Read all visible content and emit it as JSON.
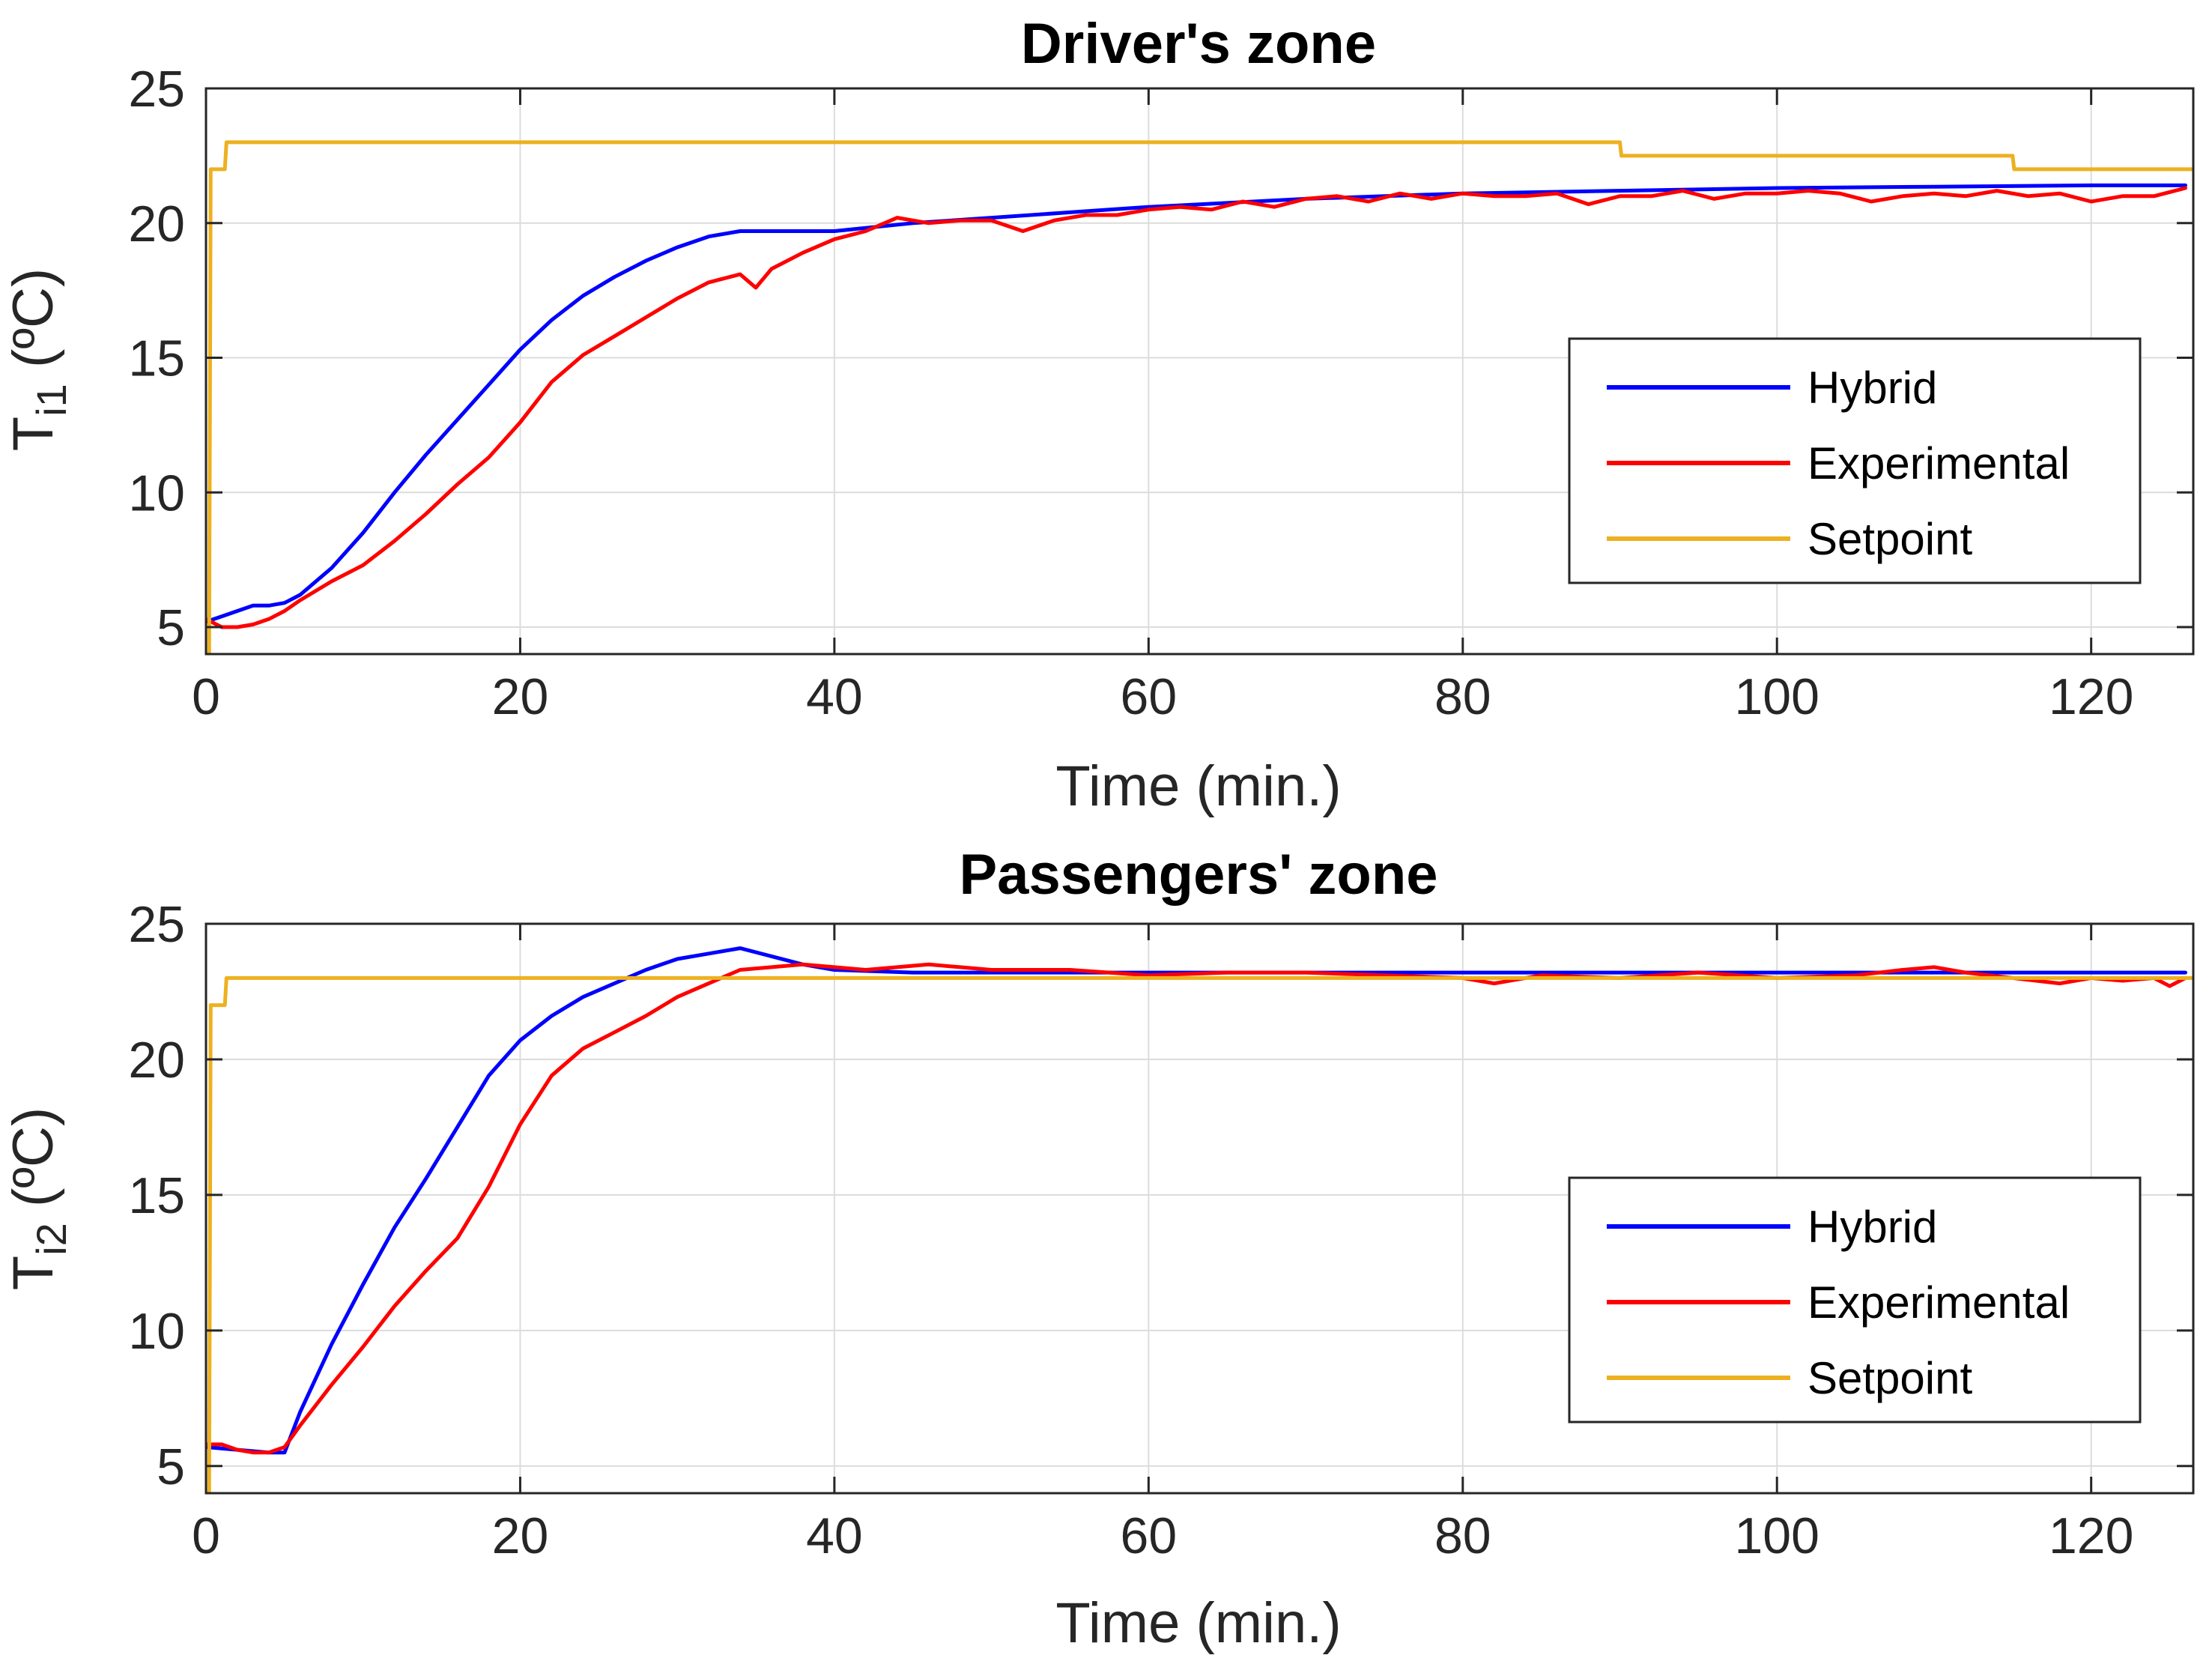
{
  "colors": {
    "hybrid": "#0000ff",
    "experimental": "#ff0000",
    "setpoint": "#edb120"
  },
  "chart_data": [
    {
      "type": "line",
      "title": "Driver's zone",
      "xlabel": "Time (min.)",
      "ylabel_main": "T",
      "ylabel_sub": "i1",
      "ylabel_unit": " (ºC)",
      "xlim": [
        0,
        126.5
      ],
      "ylim": [
        4,
        25
      ],
      "xticks": [
        0,
        20,
        40,
        60,
        80,
        100,
        120
      ],
      "yticks": [
        5,
        10,
        15,
        20,
        25
      ],
      "grid": true,
      "legend_position": "right",
      "series": [
        {
          "name": "Hybrid",
          "color_key": "hybrid",
          "x": [
            0,
            1,
            2,
            3,
            4,
            5,
            6,
            8,
            10,
            12,
            14,
            16,
            18,
            20,
            22,
            24,
            26,
            28,
            30,
            32,
            34,
            36,
            38,
            40,
            45,
            50,
            55,
            60,
            70,
            80,
            90,
            100,
            110,
            120,
            126
          ],
          "y": [
            5.2,
            5.4,
            5.6,
            5.8,
            5.8,
            5.9,
            6.2,
            7.2,
            8.5,
            10.0,
            11.4,
            12.7,
            14.0,
            15.3,
            16.4,
            17.3,
            18.0,
            18.6,
            19.1,
            19.5,
            19.7,
            19.7,
            19.7,
            19.7,
            20.0,
            20.2,
            20.4,
            20.6,
            20.9,
            21.1,
            21.2,
            21.3,
            21.35,
            21.4,
            21.4
          ]
        },
        {
          "name": "Experimental",
          "color_key": "experimental",
          "x": [
            0,
            1,
            2,
            3,
            4,
            5,
            6,
            8,
            10,
            12,
            14,
            16,
            18,
            20,
            22,
            24,
            26,
            28,
            30,
            32,
            34,
            35,
            36,
            38,
            40,
            42,
            44,
            46,
            48,
            50,
            52,
            54,
            56,
            58,
            60,
            62,
            64,
            66,
            68,
            70,
            72,
            74,
            76,
            78,
            80,
            82,
            84,
            86,
            88,
            90,
            92,
            94,
            96,
            98,
            100,
            102,
            104,
            106,
            108,
            110,
            112,
            114,
            116,
            118,
            120,
            122,
            124,
            126
          ],
          "y": [
            5.3,
            5.0,
            5.0,
            5.1,
            5.3,
            5.6,
            6.0,
            6.7,
            7.3,
            8.2,
            9.2,
            10.3,
            11.3,
            12.6,
            14.1,
            15.1,
            15.8,
            16.5,
            17.2,
            17.8,
            18.1,
            17.6,
            18.3,
            18.9,
            19.4,
            19.7,
            20.2,
            20.0,
            20.1,
            20.1,
            19.7,
            20.1,
            20.3,
            20.3,
            20.5,
            20.6,
            20.5,
            20.8,
            20.6,
            20.9,
            21.0,
            20.8,
            21.1,
            20.9,
            21.1,
            21.0,
            21.0,
            21.1,
            20.7,
            21.0,
            21.0,
            21.2,
            20.9,
            21.1,
            21.1,
            21.2,
            21.1,
            20.8,
            21.0,
            21.1,
            21.0,
            21.2,
            21.0,
            21.1,
            20.8,
            21.0,
            21.0,
            21.3
          ]
        },
        {
          "name": "Setpoint",
          "color_key": "setpoint",
          "x": [
            0,
            0.2,
            0.3,
            1.2,
            1.3,
            90,
            90.1,
            115,
            115.1,
            126.5
          ],
          "y": [
            4,
            4,
            22,
            22,
            23,
            23,
            22.5,
            22.5,
            22,
            22
          ]
        }
      ]
    },
    {
      "type": "line",
      "title": "Passengers' zone",
      "xlabel": "Time (min.)",
      "ylabel_main": "T",
      "ylabel_sub": "i2",
      "ylabel_unit": " (ºC)",
      "xlim": [
        0,
        126.5
      ],
      "ylim": [
        4,
        25
      ],
      "xticks": [
        0,
        20,
        40,
        60,
        80,
        100,
        120
      ],
      "yticks": [
        5,
        10,
        15,
        20,
        25
      ],
      "grid": true,
      "legend_position": "right",
      "series": [
        {
          "name": "Hybrid",
          "color_key": "hybrid",
          "x": [
            0,
            2,
            4,
            5,
            6,
            8,
            10,
            12,
            14,
            16,
            18,
            20,
            22,
            24,
            26,
            28,
            30,
            32,
            34,
            36,
            38,
            40,
            45,
            50,
            60,
            80,
            100,
            126
          ],
          "y": [
            5.7,
            5.6,
            5.5,
            5.5,
            7.0,
            9.5,
            11.7,
            13.8,
            15.6,
            17.5,
            19.4,
            20.7,
            21.6,
            22.3,
            22.8,
            23.3,
            23.7,
            23.9,
            24.1,
            23.8,
            23.5,
            23.3,
            23.2,
            23.2,
            23.2,
            23.2,
            23.2,
            23.2
          ]
        },
        {
          "name": "Experimental",
          "color_key": "experimental",
          "x": [
            0,
            1,
            2,
            3,
            4,
            5,
            6,
            8,
            10,
            12,
            14,
            16,
            18,
            20,
            22,
            24,
            26,
            28,
            30,
            32,
            34,
            36,
            38,
            40,
            42,
            44,
            46,
            48,
            50,
            55,
            60,
            65,
            70,
            75,
            80,
            82,
            85,
            90,
            95,
            100,
            105,
            108,
            110,
            112,
            115,
            118,
            120,
            122,
            124,
            125,
            126
          ],
          "y": [
            5.8,
            5.8,
            5.6,
            5.5,
            5.5,
            5.7,
            6.5,
            8.0,
            9.4,
            10.9,
            12.2,
            13.4,
            15.3,
            17.6,
            19.4,
            20.4,
            21.0,
            21.6,
            22.3,
            22.8,
            23.3,
            23.4,
            23.5,
            23.4,
            23.3,
            23.4,
            23.5,
            23.4,
            23.3,
            23.3,
            23.1,
            23.2,
            23.2,
            23.1,
            23.0,
            22.8,
            23.1,
            23.0,
            23.2,
            23.0,
            23.1,
            23.3,
            23.4,
            23.2,
            23.0,
            22.8,
            23.0,
            22.9,
            23.0,
            22.7,
            23.0
          ]
        },
        {
          "name": "Setpoint",
          "color_key": "setpoint",
          "x": [
            0,
            0.2,
            0.3,
            1.2,
            1.3,
            126.5
          ],
          "y": [
            4,
            4,
            22,
            22,
            23,
            23
          ]
        }
      ]
    }
  ]
}
